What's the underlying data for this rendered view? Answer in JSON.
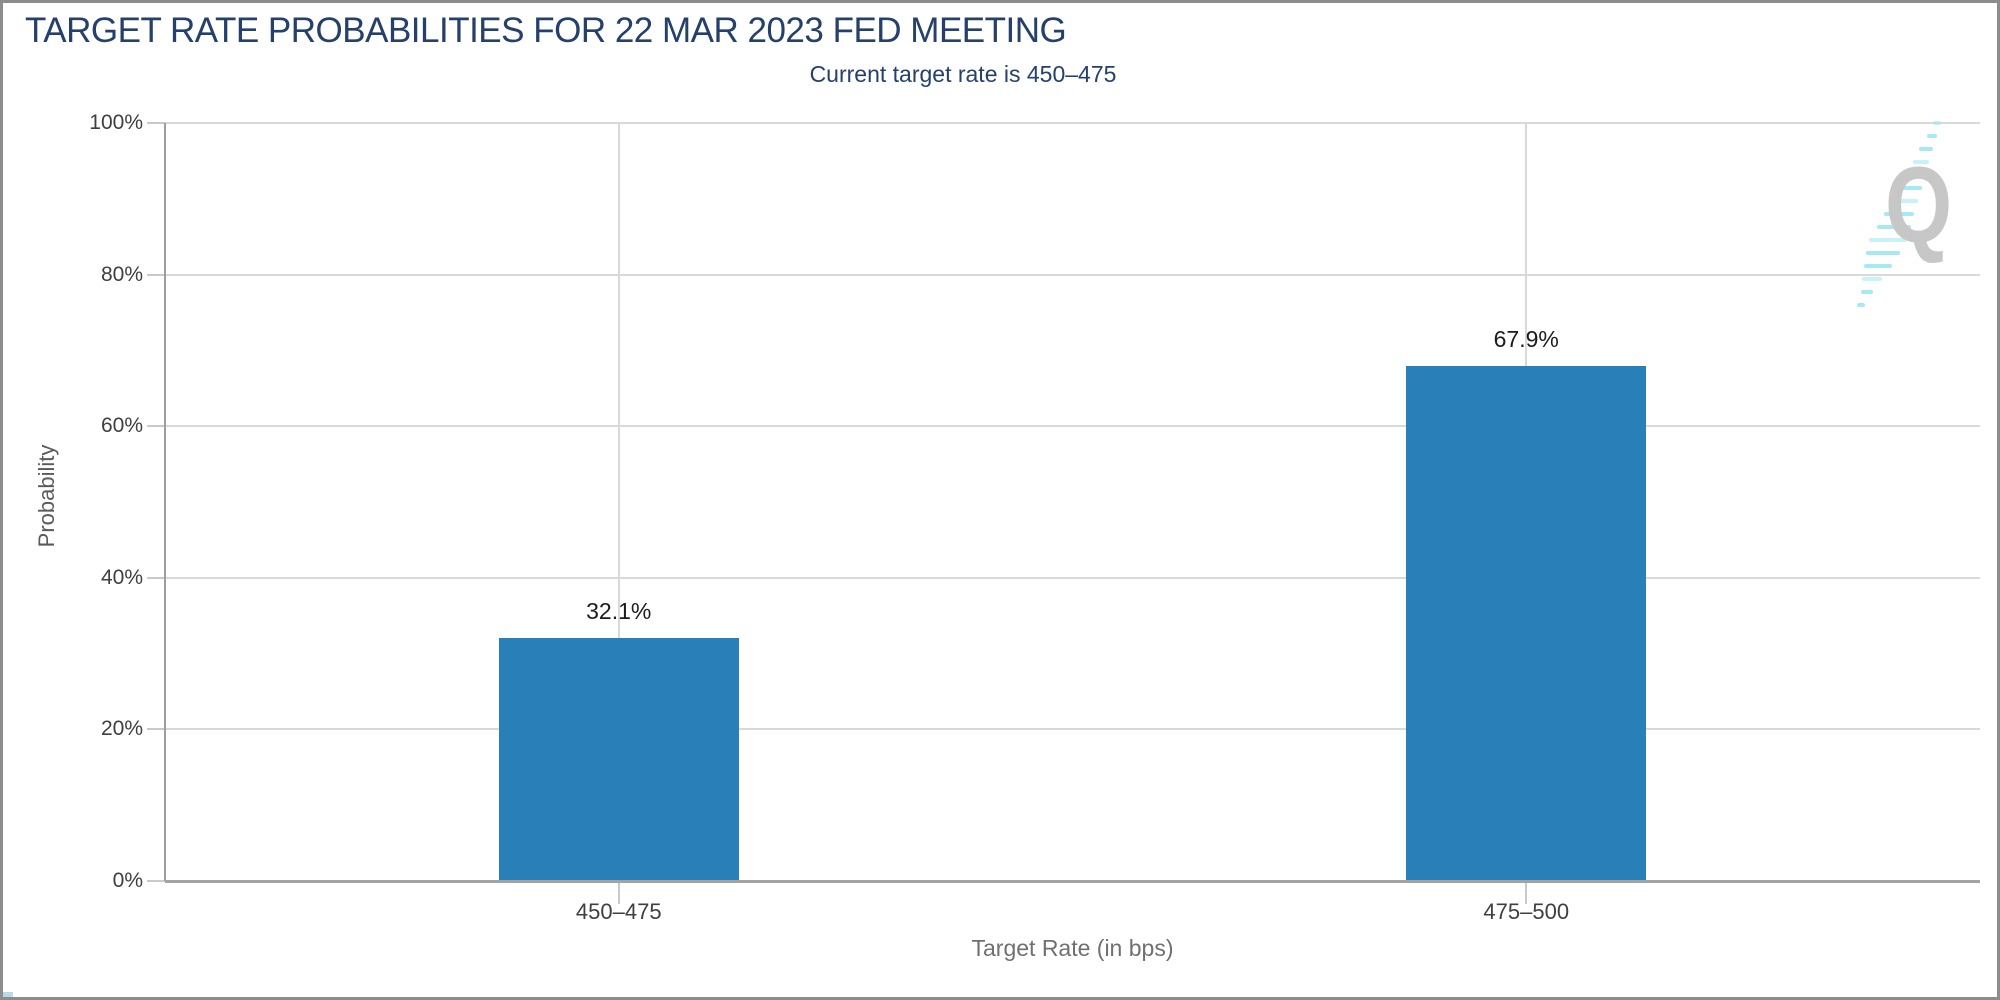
{
  "chart_data": {
    "type": "bar",
    "title": "TARGET RATE PROBABILITIES FOR 22 MAR 2023 FED MEETING",
    "subtitle": "Current target rate is 450–475",
    "xlabel": "Target Rate (in bps)",
    "ylabel": "Probability",
    "categories": [
      "450–475",
      "475–500"
    ],
    "values": [
      32.1,
      67.9
    ],
    "value_labels": [
      "32.1%",
      "67.9%"
    ],
    "ylim": [
      0,
      100
    ],
    "yticks": [
      0,
      20,
      40,
      60,
      80,
      100
    ],
    "ytick_labels": [
      "0%",
      "20%",
      "40%",
      "60%",
      "80%",
      "100%"
    ],
    "grid": true,
    "legend_position": "none"
  },
  "colors": {
    "bar": "#2980b8",
    "title": "#24406b",
    "tick_label": "#3f3f3f",
    "axis_title_gray": "#707070",
    "gridline": "#d9d9d9",
    "axis_line": "#9e9e9e",
    "value_label": "#1c1c1c",
    "frame_border": "#8c8c8c",
    "watermark_gray": "#c7c7c7",
    "watermark_cyan": "#9ae7f4"
  },
  "watermark": {
    "letter": "Q"
  }
}
